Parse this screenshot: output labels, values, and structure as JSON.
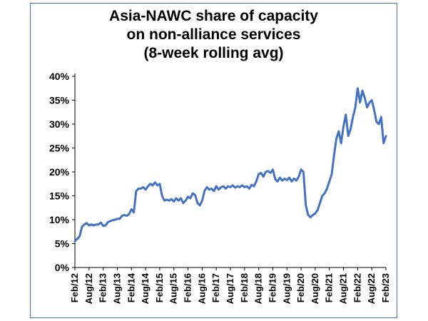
{
  "chart_data": {
    "type": "line",
    "title_lines": [
      "Asia-NAWC share of capacity",
      "on non-alliance services",
      "(8-week rolling avg)"
    ],
    "ylim": [
      0,
      40
    ],
    "y_unit": "%",
    "y_ticks": [
      "0%",
      "5%",
      "10%",
      "15%",
      "20%",
      "25%",
      "30%",
      "35%",
      "40%"
    ],
    "x_tick_labels": [
      "Feb/12",
      "Aug/12",
      "Feb/13",
      "Aug/13",
      "Feb/14",
      "Aug/14",
      "Feb/15",
      "Aug/15",
      "Feb/16",
      "Aug/16",
      "Feb/17",
      "Aug/17",
      "Feb/18",
      "Aug/18",
      "Feb/19",
      "Aug/19",
      "Feb/20",
      "Aug/20",
      "Feb/21",
      "Aug/21",
      "Feb/22",
      "Aug/22",
      "Feb/23"
    ],
    "grid": false,
    "legend": "none",
    "line_color": "#4472c4",
    "series": [
      {
        "x": [
          "2012-02",
          "2012-03",
          "2012-04",
          "2012-05",
          "2012-06",
          "2012-07",
          "2012-08",
          "2012-09",
          "2012-10",
          "2012-11",
          "2012-12",
          "2013-01",
          "2013-02",
          "2013-03",
          "2013-04",
          "2013-05",
          "2013-06",
          "2013-07",
          "2013-08",
          "2013-09",
          "2013-10",
          "2013-11",
          "2013-12",
          "2014-01",
          "2014-02",
          "2014-03",
          "2014-04",
          "2014-05",
          "2014-06",
          "2014-07",
          "2014-08",
          "2014-09",
          "2014-10",
          "2014-11",
          "2014-12",
          "2015-01",
          "2015-02",
          "2015-03",
          "2015-04",
          "2015-05",
          "2015-06",
          "2015-07",
          "2015-08",
          "2015-09",
          "2015-10",
          "2015-11",
          "2015-12",
          "2016-01",
          "2016-02",
          "2016-03",
          "2016-04",
          "2016-05",
          "2016-06",
          "2016-07",
          "2016-08",
          "2016-09",
          "2016-10",
          "2016-11",
          "2016-12",
          "2017-01",
          "2017-02",
          "2017-03",
          "2017-04",
          "2017-05",
          "2017-06",
          "2017-07",
          "2017-08",
          "2017-09",
          "2017-10",
          "2017-11",
          "2017-12",
          "2018-01",
          "2018-02",
          "2018-03",
          "2018-04",
          "2018-05",
          "2018-06",
          "2018-07",
          "2018-08",
          "2018-09",
          "2018-10",
          "2018-11",
          "2018-12",
          "2019-01",
          "2019-02",
          "2019-03",
          "2019-04",
          "2019-05",
          "2019-06",
          "2019-07",
          "2019-08",
          "2019-09",
          "2019-10",
          "2019-11",
          "2019-12",
          "2020-01",
          "2020-02",
          "2020-03",
          "2020-04",
          "2020-05",
          "2020-06",
          "2020-07",
          "2020-08",
          "2020-09",
          "2020-10",
          "2020-11",
          "2020-12",
          "2021-01",
          "2021-02",
          "2021-03",
          "2021-04",
          "2021-05",
          "2021-06",
          "2021-07",
          "2021-08",
          "2021-09",
          "2021-10",
          "2021-11",
          "2021-12",
          "2022-01",
          "2022-02",
          "2022-03",
          "2022-04",
          "2022-05",
          "2022-06",
          "2022-07",
          "2022-08",
          "2022-09",
          "2022-10",
          "2022-11",
          "2022-12",
          "2023-01",
          "2023-02"
        ],
        "values": [
          5.5,
          6.0,
          6.5,
          8.5,
          9.0,
          9.3,
          8.8,
          9.0,
          8.8,
          9.0,
          9.0,
          9.4,
          8.7,
          8.8,
          9.5,
          9.7,
          9.9,
          10.0,
          10.2,
          10.2,
          10.8,
          11.0,
          10.8,
          11.2,
          12.2,
          11.5,
          16.0,
          16.5,
          16.5,
          16.8,
          16.3,
          17.0,
          17.5,
          17.2,
          17.8,
          17.2,
          17.5,
          15.0,
          14.0,
          14.2,
          14.0,
          14.3,
          13.8,
          14.5,
          14.0,
          14.5,
          13.5,
          14.0,
          14.8,
          14.5,
          15.5,
          15.2,
          13.5,
          13.0,
          14.0,
          16.0,
          16.8,
          16.3,
          16.5,
          16.0,
          17.0,
          16.3,
          16.8,
          17.0,
          16.5,
          17.0,
          16.8,
          17.2,
          16.7,
          17.0,
          16.8,
          17.2,
          16.8,
          17.0,
          16.5,
          17.3,
          17.0,
          18.0,
          19.5,
          19.8,
          19.0,
          20.0,
          20.2,
          19.8,
          20.5,
          18.5,
          18.0,
          18.8,
          18.2,
          18.6,
          18.3,
          18.8,
          18.0,
          18.6,
          18.2,
          19.0,
          20.5,
          20.0,
          13.0,
          11.0,
          10.5,
          11.0,
          11.3,
          12.0,
          13.5,
          15.0,
          15.5,
          16.5,
          18.0,
          19.5,
          23.5,
          27.0,
          28.5,
          26.0,
          29.5,
          32.0,
          27.5,
          29.0,
          31.5,
          33.5,
          37.5,
          34.5,
          37.0,
          35.5,
          33.5,
          34.5,
          35.0,
          33.0,
          30.5,
          30.0,
          31.5,
          26.0,
          27.5
        ]
      }
    ]
  }
}
